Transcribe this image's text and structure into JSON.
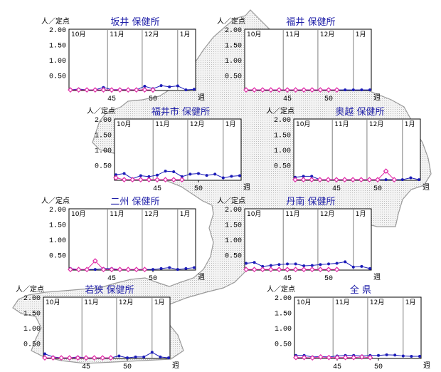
{
  "colors": {
    "current": "#1c1cb8",
    "previous": "#e02aa6",
    "title": "#1f1fa8",
    "map_fill": "#e9e9e9",
    "map_stroke": "#9a9a9a"
  },
  "common": {
    "unit_label": "人／定点",
    "week_label": "週",
    "y_ticks": [
      "2.00",
      "1.50",
      "1.00",
      "0.50"
    ],
    "x_ticks": [
      "45",
      "50"
    ],
    "months": [
      "10月",
      "11月",
      "12月",
      "1月"
    ]
  },
  "chart_data": [
    {
      "type": "line",
      "title": "坂井 保健所",
      "ylim": [
        0,
        2
      ],
      "x_start": 40,
      "x_end": 54,
      "month_start_weeks": [
        40,
        44.5,
        48.7,
        53
      ],
      "series": [
        {
          "values": [
            0.02,
            0.05,
            0.02,
            0.02,
            0.1,
            0.03,
            0.03,
            0.03,
            0.02,
            0.14,
            0.06,
            0.16,
            0.12,
            0.15,
            0.02,
            0.04
          ]
        },
        {
          "values": [
            0.02,
            0.02,
            0.02,
            0.02,
            0.02,
            0.02,
            0.02,
            0.02,
            0.02,
            0.02,
            0.02
          ]
        }
      ]
    },
    {
      "type": "line",
      "title": "福井 保健所",
      "ylim": [
        0,
        2
      ],
      "x_start": 40,
      "x_end": 54,
      "month_start_weeks": [
        40,
        44.5,
        48.7,
        53
      ],
      "series": [
        {
          "values": [
            0.02,
            0.02,
            0.02,
            0.02,
            0.02,
            0.02,
            0.02,
            0.02,
            0.02,
            0.02,
            0.02,
            0.02,
            0.02,
            0.02,
            0.02,
            0.02
          ]
        },
        {
          "values": [
            0.02,
            0.02,
            0.02,
            0.02,
            0.02,
            0.02,
            0.02,
            0.02,
            0.02,
            0.02,
            0.02,
            0.02
          ]
        }
      ]
    },
    {
      "type": "line",
      "title": "福井市 保健所",
      "ylim": [
        0,
        2
      ],
      "x_start": 40,
      "x_end": 54,
      "month_start_weeks": [
        40,
        44.5,
        48.7,
        53
      ],
      "series": [
        {
          "values": [
            0.18,
            0.22,
            0.05,
            0.15,
            0.12,
            0.17,
            0.3,
            0.28,
            0.12,
            0.2,
            0.22,
            0.16,
            0.2,
            0.08,
            0.13,
            0.15
          ]
        },
        {
          "values": [
            0.08,
            0.02,
            0.02,
            0.02,
            0.02,
            0.02,
            0.02,
            0.02,
            0.02
          ]
        }
      ]
    },
    {
      "type": "line",
      "title": "奥越 保健所",
      "ylim": [
        0,
        2
      ],
      "x_start": 40,
      "x_end": 54,
      "month_start_weeks": [
        40,
        44.5,
        48.7,
        53
      ],
      "series": [
        {
          "values": [
            0.1,
            0.13,
            0.13,
            0.02,
            0.02,
            0.02,
            0.02,
            0.02,
            0.02,
            0.02,
            0.02,
            0.02,
            0.02,
            0.02,
            0.08,
            0.02
          ]
        },
        {
          "values": [
            0.02,
            0.02,
            0.02,
            0.02,
            0.02,
            0.02,
            0.02,
            0.02,
            0.02,
            0.02,
            0.02,
            0.3,
            0.02
          ]
        }
      ]
    },
    {
      "type": "line",
      "title": "二州 保健所",
      "ylim": [
        0,
        2
      ],
      "x_start": 40,
      "x_end": 54,
      "month_start_weeks": [
        40,
        44.5,
        48.7,
        53
      ],
      "series": [
        {
          "values": [
            0.05,
            0.02,
            0.02,
            0.02,
            0.05,
            0.05,
            0.02,
            0.02,
            0.02,
            0.02,
            0.02,
            0.05,
            0.08,
            0.02,
            0.05,
            0.08
          ]
        },
        {
          "values": [
            0.02,
            0.02,
            0.02,
            0.3,
            0.02,
            0.02,
            0.02,
            0.02,
            0.02,
            0.02
          ]
        }
      ]
    },
    {
      "type": "line",
      "title": "丹南 保健所",
      "ylim": [
        0,
        2
      ],
      "x_start": 40,
      "x_end": 54,
      "month_start_weeks": [
        40,
        44.5,
        48.7,
        53
      ],
      "series": [
        {
          "values": [
            0.22,
            0.25,
            0.12,
            0.15,
            0.18,
            0.2,
            0.2,
            0.14,
            0.15,
            0.18,
            0.2,
            0.22,
            0.27,
            0.1,
            0.12,
            0.05
          ]
        },
        {
          "values": [
            0.02,
            0.02,
            0.02,
            0.02,
            0.02,
            0.02,
            0.02,
            0.02,
            0.02,
            0.02,
            0.02,
            0.02
          ]
        }
      ]
    },
    {
      "type": "line",
      "title": "若狭 保健所",
      "ylim": [
        0,
        2
      ],
      "x_start": 40,
      "x_end": 54,
      "month_start_weeks": [
        40,
        44.5,
        48.7,
        53
      ],
      "series": [
        {
          "values": [
            0.15,
            0.05,
            0.02,
            0.02,
            0.05,
            0.02,
            0.02,
            0.02,
            0.02,
            0.08,
            0.02,
            0.05,
            0.05,
            0.2,
            0.05,
            0.02
          ]
        },
        {
          "values": [
            0.02,
            0.02,
            0.02,
            0.02,
            0.02,
            0.02,
            0.02,
            0.02,
            0.02
          ]
        }
      ]
    },
    {
      "type": "line",
      "title": "全 県",
      "ylim": [
        0,
        2
      ],
      "x_start": 40,
      "x_end": 54,
      "month_start_weeks": [
        40,
        44.5,
        48.7,
        53
      ],
      "series": [
        {
          "values": [
            0.1,
            0.1,
            0.05,
            0.06,
            0.05,
            0.08,
            0.1,
            0.1,
            0.08,
            0.1,
            0.1,
            0.12,
            0.11,
            0.08,
            0.07,
            0.07
          ]
        },
        {
          "values": [
            0.03,
            0.03,
            0.02,
            0.05,
            0.03,
            0.03,
            0.03,
            0.03,
            0.05,
            0.03
          ]
        }
      ]
    }
  ]
}
